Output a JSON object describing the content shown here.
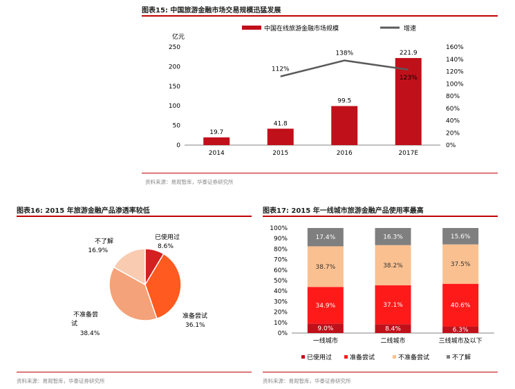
{
  "fig15": {
    "title": "图表15:   中国旅游金融市场交易规模迅猛发展",
    "source": "资料来源：易观智库，华泰证券研究所"
  },
  "fig16": {
    "title": "图表16:   2015 年旅游金融产品渗透率较低",
    "source": "资料来源：易观智库，华泰证券研究所"
  },
  "fig17": {
    "title": "图表17:   2015 年一线城市旅游金融产品使用率最高",
    "source": "资料来源：易观智库，华泰证券研究所"
  },
  "colors": {
    "bar_red": "#c0101a",
    "line_gray": "#5a5a5a",
    "pie_used": "#d42020",
    "pie_preparing": "#ff5a1f",
    "pie_not_preparing": "#f4a27a",
    "pie_unaware": "#f9cbb0",
    "stack_used": "#c0101a",
    "stack_preparing": "#ff1a1a",
    "stack_not_preparing": "#fac090",
    "stack_unaware": "#7f7f7f"
  },
  "chart_data": [
    {
      "type": "bar",
      "title": "",
      "categories": [
        "2014",
        "2015",
        "2016",
        "2017E"
      ],
      "ylabel": "亿元",
      "ylim": [
        0,
        250
      ],
      "y_ticks": [
        0,
        50,
        100,
        150,
        200,
        250
      ],
      "y2lim": [
        0,
        160
      ],
      "y2_ticks": [
        "0%",
        "20%",
        "40%",
        "60%",
        "80%",
        "100%",
        "120%",
        "140%",
        "160%"
      ],
      "series": [
        {
          "name": "中国在线旅游金融市场规模",
          "type": "bar",
          "values": [
            19.7,
            41.8,
            99.5,
            221.9
          ],
          "labels": [
            "19.7",
            "41.8",
            "99.5",
            "221.9"
          ]
        },
        {
          "name": "增速",
          "type": "line",
          "axis": "right",
          "values": [
            null,
            112,
            138,
            123
          ],
          "labels": [
            "",
            "112%",
            "138%",
            "123%"
          ]
        }
      ],
      "legend_position": "top-right",
      "grid": false
    },
    {
      "type": "pie",
      "slices": [
        {
          "label": "已使用过",
          "value": 8.6,
          "display": "8.6%"
        },
        {
          "label": "准备尝试",
          "value": 36.1,
          "display": "36.1%"
        },
        {
          "label": "不准备尝试",
          "value": 38.4,
          "display": "38.4%"
        },
        {
          "label": "不了解",
          "value": 16.9,
          "display": "16.9%"
        }
      ]
    },
    {
      "type": "bar",
      "stacked": true,
      "categories": [
        "一线城市",
        "二线城市",
        "三线城市及以下"
      ],
      "ylim": [
        0,
        100
      ],
      "y_ticks": [
        "0%",
        "10%",
        "20%",
        "30%",
        "40%",
        "50%",
        "60%",
        "70%",
        "80%",
        "90%",
        "100%"
      ],
      "series": [
        {
          "name": "已使用过",
          "values": [
            9.0,
            8.4,
            6.3
          ],
          "labels": [
            "9.0%",
            "8.4%",
            "6.3%"
          ]
        },
        {
          "name": "准备尝试",
          "values": [
            34.9,
            37.1,
            40.6
          ],
          "labels": [
            "34.9%",
            "37.1%",
            "40.6%"
          ]
        },
        {
          "name": "不准备尝试",
          "values": [
            38.7,
            38.2,
            37.5
          ],
          "labels": [
            "38.7%",
            "38.2%",
            "37.5%"
          ]
        },
        {
          "name": "不了解",
          "values": [
            17.4,
            16.3,
            15.6
          ],
          "labels": [
            "17.4%",
            "16.3%",
            "15.6%"
          ]
        }
      ],
      "legend_position": "bottom",
      "grid": false
    }
  ]
}
